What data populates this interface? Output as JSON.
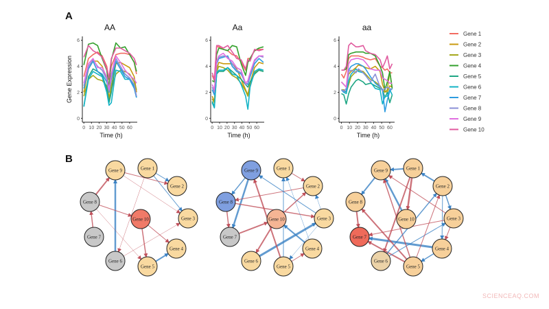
{
  "panel_labels": {
    "a": "A",
    "b": "B"
  },
  "watermark": "SCIENCEAQ.COM",
  "legend": [
    "Gene 1",
    "Gene 2",
    "Gene 3",
    "Gene 4",
    "Gene 5",
    "Gene 6",
    "Gene 7",
    "Gene 8",
    "Gene 9",
    "Gene 10"
  ],
  "series_colors": [
    "#f26b61",
    "#c99a0e",
    "#a5a81c",
    "#33a02c",
    "#1ea684",
    "#13b3c6",
    "#2d9ce0",
    "#8a8fd6",
    "#e06ee0",
    "#e05a9e"
  ],
  "chart_data": [
    {
      "type": "line",
      "title": "AA",
      "xlabel": "Time (h)",
      "ylabel": "Gene Expression",
      "xlim": [
        -2,
        70
      ],
      "ylim": [
        -0.3,
        6.3
      ],
      "xticks": [
        0,
        10,
        20,
        30,
        40,
        50,
        60
      ],
      "yticks": [
        0,
        2,
        4,
        6
      ],
      "x": [
        0,
        6,
        12,
        18,
        24,
        30,
        33,
        36,
        42,
        48,
        54,
        60,
        66,
        69
      ],
      "series": [
        {
          "name": "Gene 1",
          "values": [
            3.2,
            4.6,
            4.9,
            5.1,
            4.8,
            4.0,
            3.0,
            4.0,
            4.9,
            5.0,
            5.0,
            4.9,
            4.3,
            3.4
          ]
        },
        {
          "name": "Gene 2",
          "values": [
            2.0,
            3.8,
            4.4,
            4.4,
            4.0,
            3.0,
            1.5,
            2.5,
            4.2,
            4.3,
            4.1,
            3.9,
            3.2,
            2.0
          ]
        },
        {
          "name": "Gene 3",
          "values": [
            1.7,
            3.0,
            3.3,
            3.0,
            2.9,
            2.5,
            1.4,
            2.2,
            3.4,
            3.7,
            3.6,
            3.4,
            2.8,
            2.2
          ]
        },
        {
          "name": "Gene 4",
          "values": [
            4.1,
            5.7,
            5.8,
            5.6,
            4.6,
            3.7,
            2.3,
            4.5,
            5.8,
            5.4,
            5.5,
            4.9,
            4.3,
            3.6
          ]
        },
        {
          "name": "Gene 5",
          "values": [
            0.9,
            3.2,
            3.8,
            3.6,
            3.3,
            2.3,
            1.2,
            2.0,
            4.4,
            3.8,
            3.4,
            3.1,
            2.4,
            1.6
          ]
        },
        {
          "name": "Gene 6",
          "values": [
            0.9,
            3.0,
            3.6,
            3.4,
            3.2,
            2.0,
            1.0,
            1.2,
            3.7,
            3.6,
            3.0,
            3.0,
            2.5,
            1.6
          ]
        },
        {
          "name": "Gene 7",
          "values": [
            2.3,
            3.8,
            4.4,
            3.6,
            3.4,
            2.8,
            2.0,
            3.0,
            4.4,
            3.8,
            3.2,
            3.0,
            2.3,
            1.6
          ]
        },
        {
          "name": "Gene 8",
          "values": [
            2.5,
            4.0,
            4.5,
            4.0,
            3.7,
            3.0,
            2.1,
            3.2,
            4.6,
            4.0,
            3.4,
            3.1,
            2.6,
            1.7
          ]
        },
        {
          "name": "Gene 9",
          "values": [
            2.7,
            4.2,
            4.6,
            3.9,
            3.9,
            3.2,
            2.2,
            3.4,
            4.8,
            4.3,
            3.7,
            3.3,
            3.0,
            2.7
          ]
        },
        {
          "name": "Gene 10",
          "values": [
            4.7,
            5.6,
            5.2,
            5.0,
            4.7,
            3.8,
            3.1,
            4.6,
            5.4,
            5.4,
            5.2,
            5.0,
            4.6,
            4.1
          ]
        }
      ]
    },
    {
      "type": "line",
      "title": "Aa",
      "xlabel": "Time (h)",
      "ylabel": "",
      "xlim": [
        -2,
        70
      ],
      "ylim": [
        -0.3,
        6.3
      ],
      "xticks": [
        0,
        10,
        20,
        30,
        40,
        50,
        60
      ],
      "yticks": [
        0,
        2,
        4,
        6
      ],
      "x": [
        0,
        3,
        6,
        9,
        15,
        21,
        27,
        33,
        39,
        45,
        48,
        51,
        57,
        63,
        69
      ],
      "series": [
        {
          "name": "Gene 1",
          "values": [
            3.3,
            2.9,
            5.5,
            5.5,
            5.3,
            5.2,
            4.9,
            4.8,
            4.3,
            3.7,
            4.6,
            4.6,
            5.2,
            5.3,
            5.3
          ]
        },
        {
          "name": "Gene 2",
          "values": [
            1.7,
            1.3,
            3.8,
            4.3,
            4.2,
            4.2,
            4.2,
            3.8,
            3.0,
            2.2,
            1.8,
            2.7,
            3.9,
            4.3,
            4.2
          ]
        },
        {
          "name": "Gene 3",
          "values": [
            1.5,
            1.2,
            3.6,
            4.0,
            3.9,
            3.7,
            3.3,
            3.1,
            2.7,
            2.1,
            1.7,
            2.5,
            3.5,
            3.7,
            3.6
          ]
        },
        {
          "name": "Gene 4",
          "values": [
            2.9,
            2.8,
            4.9,
            5.4,
            5.3,
            5.2,
            5.6,
            5.5,
            4.2,
            3.3,
            4.3,
            4.6,
            5.2,
            5.4,
            5.5
          ]
        },
        {
          "name": "Gene 5",
          "values": [
            1.3,
            0.9,
            3.4,
            3.6,
            3.6,
            3.9,
            3.6,
            3.3,
            3.0,
            2.6,
            2.4,
            2.8,
            3.4,
            3.7,
            3.6
          ]
        },
        {
          "name": "Gene 6",
          "values": [
            1.2,
            0.8,
            3.5,
            3.7,
            3.7,
            3.9,
            3.4,
            3.3,
            2.6,
            1.7,
            0.7,
            2.4,
            3.6,
            3.8,
            3.7
          ]
        },
        {
          "name": "Gene 7",
          "values": [
            2.2,
            1.8,
            4.2,
            4.6,
            4.7,
            4.8,
            4.0,
            3.6,
            3.4,
            2.7,
            2.6,
            3.2,
            4.2,
            4.6,
            4.3
          ]
        },
        {
          "name": "Gene 8",
          "values": [
            2.4,
            2.0,
            4.3,
            4.7,
            4.8,
            4.7,
            4.2,
            3.7,
            3.5,
            2.6,
            2.7,
            3.4,
            4.4,
            4.8,
            4.7
          ]
        },
        {
          "name": "Gene 9",
          "values": [
            2.6,
            2.2,
            4.4,
            4.8,
            5.0,
            4.6,
            4.4,
            3.9,
            3.7,
            2.7,
            2.9,
            3.5,
            4.5,
            4.8,
            4.8
          ]
        },
        {
          "name": "Gene 10",
          "values": [
            3.5,
            3.0,
            5.6,
            5.6,
            5.4,
            5.6,
            5.1,
            4.6,
            4.5,
            3.8,
            4.5,
            4.4,
            5.3,
            5.2,
            5.3
          ]
        }
      ]
    },
    {
      "type": "line",
      "title": "aa",
      "xlabel": "Time (h)",
      "ylabel": "",
      "xlim": [
        -3,
        66
      ],
      "ylim": [
        -0.3,
        6.3
      ],
      "xticks": [
        0,
        10,
        20,
        30,
        40,
        50,
        60
      ],
      "yticks": [
        0,
        2,
        4,
        6
      ],
      "x": [
        0,
        3,
        6,
        9,
        12,
        18,
        21,
        27,
        30,
        36,
        42,
        48,
        51,
        54,
        57,
        60,
        63
      ],
      "series": [
        {
          "name": "Gene 1",
          "values": [
            3.4,
            3.1,
            3.6,
            4.6,
            4.8,
            4.8,
            4.8,
            4.7,
            4.6,
            4.5,
            4.6,
            4.0,
            3.9,
            3.7,
            3.8,
            3.5,
            3.5
          ]
        },
        {
          "name": "Gene 2",
          "values": [
            2.8,
            2.6,
            2.4,
            3.4,
            3.6,
            3.9,
            4.1,
            4.0,
            3.9,
            3.8,
            4.0,
            3.6,
            2.6,
            2.1,
            2.0,
            2.5,
            2.4
          ]
        },
        {
          "name": "Gene 3",
          "values": [
            2.2,
            2.2,
            2.0,
            2.6,
            3.2,
            3.6,
            3.7,
            3.6,
            3.4,
            3.0,
            2.8,
            2.5,
            2.2,
            2.0,
            2.2,
            3.6,
            2.3
          ]
        },
        {
          "name": "Gene 4",
          "values": [
            3.7,
            3.7,
            3.8,
            4.9,
            5.0,
            5.1,
            5.1,
            5.1,
            5.0,
            5.0,
            4.8,
            4.0,
            3.5,
            2.2,
            2.8,
            3.6,
            2.3
          ]
        },
        {
          "name": "Gene 5",
          "values": [
            1.9,
            1.8,
            1.1,
            1.9,
            2.4,
            2.9,
            3.0,
            2.8,
            2.6,
            2.7,
            2.5,
            2.3,
            2.2,
            1.6,
            2.0,
            1.2,
            1.8
          ]
        },
        {
          "name": "Gene 6",
          "values": [
            2.2,
            2.0,
            1.9,
            2.9,
            3.4,
            3.8,
            3.6,
            3.5,
            3.3,
            2.8,
            2.3,
            2.2,
            1.1,
            1.7,
            1.7,
            2.2,
            1.8
          ]
        },
        {
          "name": "Gene 7",
          "values": [
            2.2,
            2.0,
            2.1,
            3.7,
            4.0,
            4.2,
            4.2,
            4.0,
            3.8,
            3.2,
            2.7,
            2.4,
            2.2,
            0.5,
            1.4,
            2.1,
            2.3
          ]
        },
        {
          "name": "Gene 8",
          "values": [
            2.2,
            2.1,
            2.3,
            3.6,
            3.7,
            3.5,
            3.8,
            3.5,
            3.3,
            2.8,
            3.4,
            2.4,
            2.1,
            2.3,
            2.4,
            2.3,
            2.2
          ]
        },
        {
          "name": "Gene 9",
          "values": [
            2.8,
            2.6,
            2.4,
            4.2,
            4.5,
            4.6,
            4.6,
            4.5,
            4.3,
            3.8,
            3.7,
            3.7,
            3.1,
            3.0,
            2.9,
            2.7,
            2.7
          ]
        },
        {
          "name": "Gene 10",
          "values": [
            3.7,
            3.7,
            4.0,
            5.6,
            5.8,
            5.5,
            5.5,
            5.6,
            5.2,
            5.0,
            4.9,
            4.5,
            3.9,
            4.3,
            4.8,
            3.8,
            4.2
          ]
        }
      ]
    }
  ],
  "networks": {
    "node_labels": [
      "Gene 1",
      "Gene 2",
      "Gene 3",
      "Gene 4",
      "Gene 5",
      "Gene 6",
      "Gene 7",
      "Gene 8",
      "Gene 9",
      "Gene 10"
    ],
    "edge_colors": {
      "activation": "#3b82c4",
      "repression": "#c0505a"
    },
    "panels": [
      {
        "node_colors": [
          "#f9d9a0",
          "#f9d9a0",
          "#f9d9a0",
          "#f9d9a0",
          "#f9d9a0",
          "#c8c8c8",
          "#c8c8c8",
          "#c8c8c8",
          "#f9d9a0",
          "#f07a68"
        ],
        "edges": [
          [
            1,
            2,
            "activation",
            1
          ],
          [
            1,
            3,
            "activation",
            1
          ],
          [
            9,
            2,
            "repression",
            1
          ],
          [
            9,
            3,
            "repression",
            0.5
          ],
          [
            8,
            9,
            "repression",
            2
          ],
          [
            7,
            8,
            "repression",
            1.5
          ],
          [
            6,
            9,
            "activation",
            2.5
          ],
          [
            8,
            10,
            "repression",
            1
          ],
          [
            8,
            5,
            "repression",
            0.5
          ],
          [
            10,
            5,
            "repression",
            1.5
          ],
          [
            10,
            4,
            "repression",
            1
          ],
          [
            5,
            4,
            "activation",
            2
          ],
          [
            6,
            3,
            "repression",
            0.5
          ],
          [
            1,
            6,
            "repression",
            0.5
          ]
        ]
      },
      {
        "node_colors": [
          "#f9d9a0",
          "#f9d9a0",
          "#f9d9a0",
          "#f9d9a0",
          "#f9d9a0",
          "#f9d9a0",
          "#c8c8c8",
          "#7f9fe0",
          "#7f9fe0",
          "#f5b594"
        ],
        "edges": [
          [
            9,
            8,
            "activation",
            1.5
          ],
          [
            8,
            7,
            "repression",
            1.5
          ],
          [
            9,
            7,
            "activation",
            2.5
          ],
          [
            7,
            10,
            "repression",
            2
          ],
          [
            1,
            2,
            "repression",
            1
          ],
          [
            2,
            8,
            "repression",
            1
          ],
          [
            8,
            3,
            "repression",
            1.5
          ],
          [
            3,
            9,
            "activation",
            1
          ],
          [
            10,
            2,
            "repression",
            1.5
          ],
          [
            10,
            6,
            "repression",
            2
          ],
          [
            6,
            3,
            "activation",
            3
          ],
          [
            5,
            1,
            "activation",
            1
          ],
          [
            5,
            9,
            "repression",
            2
          ],
          [
            4,
            10,
            "activation",
            2
          ],
          [
            4,
            1,
            "activation",
            0.5
          ],
          [
            5,
            4,
            "repression",
            1
          ],
          [
            3,
            2,
            "activation",
            0.5
          ],
          [
            3,
            5,
            "activation",
            0.5
          ]
        ]
      },
      {
        "node_colors": [
          "#f7d09a",
          "#f7d09a",
          "#f7d09a",
          "#f7d09a",
          "#f7d09a",
          "#ecd3a8",
          "#ef6a5a",
          "#f7d09a",
          "#f7d09a",
          "#f7d09a"
        ],
        "edges": [
          [
            1,
            9,
            "activation",
            2
          ],
          [
            9,
            8,
            "activation",
            2
          ],
          [
            8,
            7,
            "repression",
            2
          ],
          [
            10,
            9,
            "activation",
            2.5
          ],
          [
            1,
            10,
            "repression",
            2.5
          ],
          [
            1,
            6,
            "repression",
            2
          ],
          [
            2,
            1,
            "activation",
            2
          ],
          [
            2,
            3,
            "activation",
            1.5
          ],
          [
            2,
            4,
            "activation",
            1
          ],
          [
            3,
            4,
            "repression",
            1
          ],
          [
            3,
            9,
            "repression",
            1
          ],
          [
            3,
            7,
            "repression",
            1
          ],
          [
            4,
            7,
            "activation",
            3
          ],
          [
            5,
            7,
            "repression",
            2
          ],
          [
            5,
            8,
            "repression",
            2
          ],
          [
            5,
            9,
            "repression",
            1.5
          ],
          [
            6,
            2,
            "activation",
            1.5
          ],
          [
            6,
            3,
            "activation",
            1
          ],
          [
            4,
            5,
            "activation",
            1.5
          ],
          [
            5,
            2,
            "repression",
            1
          ]
        ]
      }
    ]
  }
}
